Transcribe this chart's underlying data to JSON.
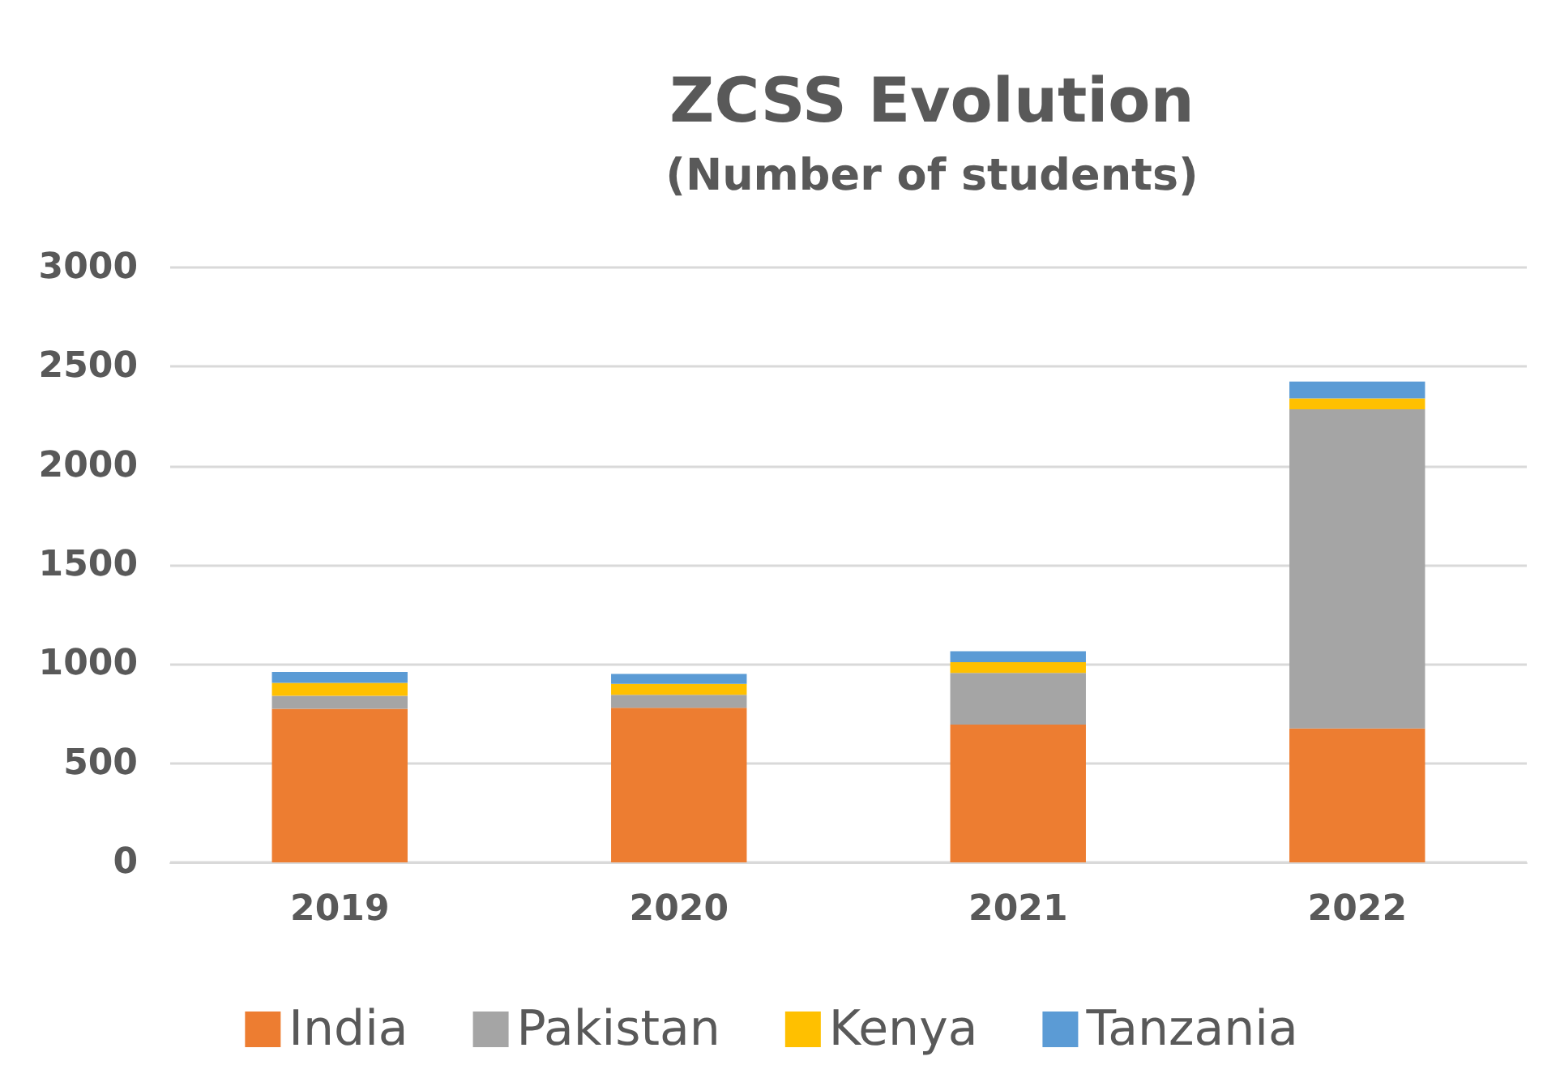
{
  "chart_data": {
    "type": "bar",
    "title": "ZCSS Evolution",
    "subtitle": "(Number of students)",
    "categories": [
      "2019",
      "2020",
      "2021",
      "2022"
    ],
    "series": [
      {
        "name": "India",
        "color": "#ed7d31",
        "values": [
          775,
          780,
          695,
          675
        ]
      },
      {
        "name": "Pakistan",
        "color": "#a5a5a5",
        "values": [
          65,
          65,
          260,
          1610
        ]
      },
      {
        "name": "Kenya",
        "color": "#ffc000",
        "values": [
          65,
          55,
          55,
          55
        ]
      },
      {
        "name": "Tanzania",
        "color": "#5b9bd5",
        "values": [
          55,
          50,
          55,
          85
        ]
      }
    ],
    "stacked": true,
    "ylim": [
      0,
      3000
    ],
    "yticks": [
      0,
      500,
      1000,
      1500,
      2000,
      2500,
      3000
    ],
    "grid": "y",
    "legend": "bottom"
  }
}
